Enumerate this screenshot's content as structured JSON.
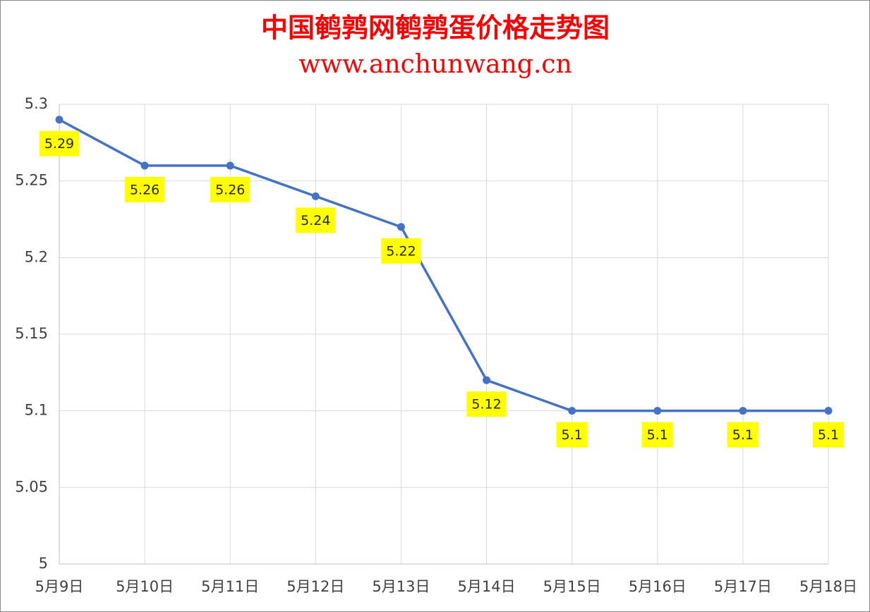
{
  "chart_data": {
    "type": "line",
    "title": "中国鹌鹑网鹌鹑蛋价格走势图",
    "subtitle": "www.anchunwang.cn",
    "categories": [
      "5月9日",
      "5月10日",
      "5月11日",
      "5月12日",
      "5月13日",
      "5月14日",
      "5月15日",
      "5月16日",
      "5月17日",
      "5月18日"
    ],
    "values": [
      5.29,
      5.26,
      5.26,
      5.24,
      5.22,
      5.12,
      5.1,
      5.1,
      5.1,
      5.1
    ],
    "color": "#4472c4",
    "label_background": "#ffff00",
    "data_labels": true,
    "ylim": [
      5,
      5.3
    ],
    "yticks": [
      5,
      5.05,
      5.1,
      5.15,
      5.2,
      5.25,
      5.3
    ],
    "grid": true
  }
}
